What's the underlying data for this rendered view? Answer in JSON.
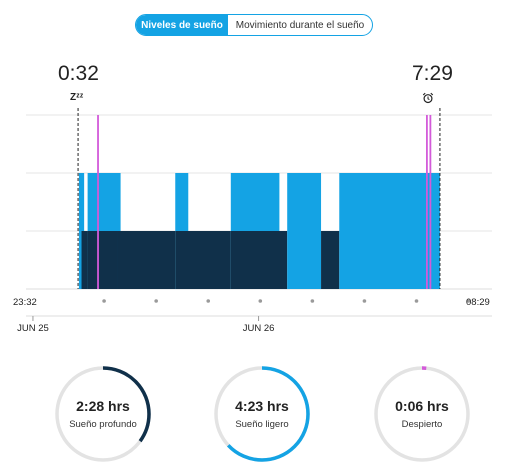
{
  "tabs": [
    {
      "label": "Niveles de sueño",
      "active": true
    },
    {
      "label": "Movimiento durante el sueño",
      "active": false
    }
  ],
  "sleep_start_time": "0:32",
  "sleep_end_time": "7:29",
  "sleep_icon_text": "Zᶻᶻ",
  "icons": {
    "sleep_start": "zzz-icon",
    "wake": "alarm-clock-icon"
  },
  "colors": {
    "light": "#14a3e4",
    "deep": "#10304a",
    "awake": "#d35ad9",
    "track": "#e3e3e3",
    "text": "#222222"
  },
  "chart_data": {
    "type": "timeline",
    "x_start_label": "23:32",
    "x_end_label": "08:29",
    "dates": [
      {
        "label": "JUN 25",
        "time": "23:40"
      },
      {
        "label": "JUN 26",
        "time": "04:00"
      }
    ],
    "tick_minutes": [
      90,
      150,
      210,
      270,
      330,
      390,
      450,
      510
    ],
    "sleep_start": "00:32",
    "sleep_end": "07:29",
    "segments": [
      {
        "stage": "light",
        "start": "00:33",
        "end": "00:39"
      },
      {
        "stage": "deep",
        "start": "00:36",
        "end": "00:43"
      },
      {
        "stage": "light",
        "start": "00:43",
        "end": "01:21"
      },
      {
        "stage": "deep",
        "start": "00:43",
        "end": "01:18"
      },
      {
        "stage": "deep",
        "start": "01:18",
        "end": "02:24"
      },
      {
        "stage": "light",
        "start": "02:24",
        "end": "02:39"
      },
      {
        "stage": "deep",
        "start": "02:24",
        "end": "03:28"
      },
      {
        "stage": "light",
        "start": "03:28",
        "end": "04:24"
      },
      {
        "stage": "deep",
        "start": "03:28",
        "end": "04:33"
      },
      {
        "stage": "light",
        "start": "04:33",
        "end": "05:12"
      },
      {
        "stage": "deep",
        "start": "05:12",
        "end": "05:33"
      },
      {
        "stage": "light",
        "start": "05:33",
        "end": "07:23"
      },
      {
        "stage": "light",
        "start": "07:21",
        "end": "07:29"
      }
    ],
    "awake_marks": [
      "00:55",
      "07:14",
      "07:18"
    ]
  },
  "summary": [
    {
      "value": "2:28 hrs",
      "label": "Sueño profundo",
      "fraction": 0.35,
      "color": "#10304a"
    },
    {
      "value": "4:23 hrs",
      "label": "Sueño ligero",
      "fraction": 0.63,
      "color": "#14a3e4"
    },
    {
      "value": "0:06 hrs",
      "label": "Despierto",
      "fraction": 0.015,
      "color": "#d35ad9"
    }
  ]
}
